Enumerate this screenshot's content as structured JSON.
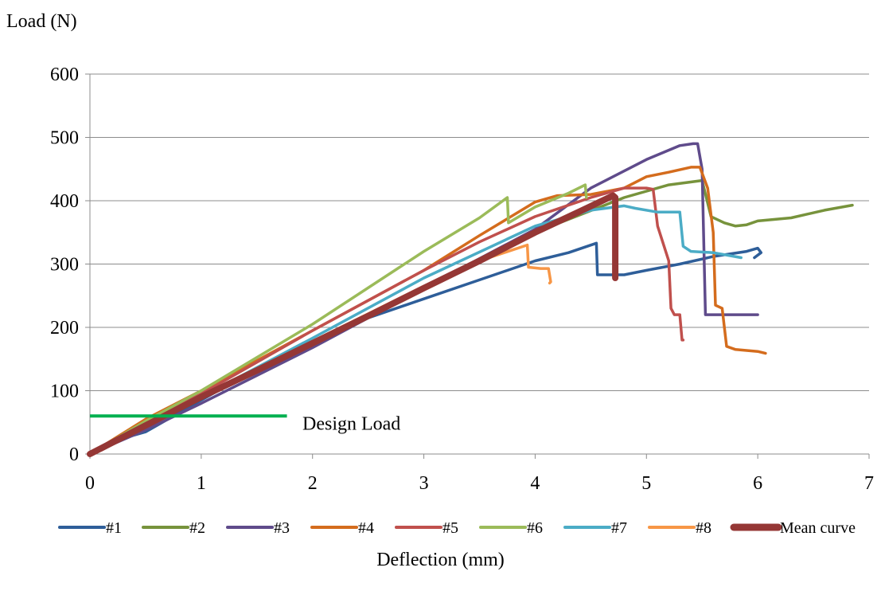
{
  "chart_data": {
    "type": "line",
    "title": "",
    "xlabel": "Deflection (mm)",
    "ylabel": "Load (N)",
    "xlim": [
      0,
      7
    ],
    "ylim": [
      0,
      600
    ],
    "x_ticks": [
      0,
      1,
      2,
      3,
      4,
      5,
      6,
      7
    ],
    "y_ticks": [
      0,
      100,
      200,
      300,
      400,
      500,
      600
    ],
    "grid": "horizontal",
    "legend_position": "bottom",
    "annotation": {
      "text": "Design Load",
      "x": [
        0,
        1.77
      ],
      "y": 60,
      "color": "#00b050"
    },
    "series": [
      {
        "name": "#1",
        "color": "#2e5e99",
        "width": 3.5,
        "x": [
          0,
          0.2,
          0.5,
          1.0,
          1.5,
          2.0,
          2.5,
          3.0,
          3.5,
          4.0,
          4.3,
          4.55,
          4.56,
          4.8,
          5.0,
          5.3,
          5.6,
          5.9,
          6.0,
          6.03,
          5.97
        ],
        "y": [
          0,
          20,
          35,
          85,
          135,
          175,
          215,
          245,
          275,
          305,
          318,
          333,
          283,
          283,
          290,
          300,
          312,
          320,
          325,
          318,
          310
        ]
      },
      {
        "name": "#2",
        "color": "#77933c",
        "width": 3.5,
        "x": [
          0,
          0.5,
          1.0,
          2.0,
          3.0,
          4.0,
          4.8,
          5.2,
          5.5,
          5.58,
          5.7,
          5.8,
          5.9,
          6.0,
          6.3,
          6.6,
          6.85
        ],
        "y": [
          0,
          45,
          88,
          175,
          262,
          350,
          405,
          425,
          432,
          375,
          365,
          360,
          362,
          368,
          373,
          385,
          393
        ]
      },
      {
        "name": "#3",
        "color": "#5f4b8b",
        "width": 3.5,
        "x": [
          0,
          0.5,
          1.0,
          2.0,
          3.0,
          4.0,
          4.5,
          5.0,
          5.3,
          5.42,
          5.46,
          5.5,
          5.53,
          5.6,
          5.8,
          6.0
        ],
        "y": [
          0,
          38,
          80,
          168,
          262,
          355,
          420,
          465,
          487,
          490,
          490,
          450,
          220,
          220,
          220,
          220
        ]
      },
      {
        "name": "#4",
        "color": "#d46c1d",
        "width": 3.5,
        "x": [
          0,
          0.5,
          1.0,
          2.0,
          3.0,
          3.5,
          4.0,
          4.2,
          4.5,
          4.8,
          5.0,
          5.2,
          5.4,
          5.48,
          5.55,
          5.6,
          5.62,
          5.68,
          5.72,
          5.8,
          6.0,
          6.07
        ],
        "y": [
          0,
          55,
          100,
          195,
          290,
          345,
          398,
          408,
          410,
          420,
          438,
          445,
          453,
          453,
          420,
          350,
          235,
          230,
          170,
          165,
          162,
          159
        ]
      },
      {
        "name": "#5",
        "color": "#c0504d",
        "width": 3.5,
        "x": [
          0,
          0.5,
          1.0,
          2.0,
          3.0,
          3.5,
          4.0,
          4.5,
          4.8,
          5.0,
          5.06,
          5.1,
          5.2,
          5.22,
          5.25,
          5.3,
          5.32,
          5.33
        ],
        "y": [
          0,
          50,
          95,
          195,
          290,
          335,
          375,
          405,
          420,
          420,
          418,
          360,
          305,
          230,
          220,
          220,
          180,
          180
        ]
      },
      {
        "name": "#6",
        "color": "#9bbb59",
        "width": 3.5,
        "x": [
          0,
          0.5,
          1.0,
          2.0,
          3.0,
          3.5,
          3.75,
          3.76,
          4.0,
          4.3,
          4.45,
          4.46
        ],
        "y": [
          0,
          52,
          100,
          205,
          320,
          373,
          405,
          365,
          390,
          412,
          425,
          405
        ]
      },
      {
        "name": "#7",
        "color": "#4bacc6",
        "width": 3.5,
        "x": [
          0,
          0.5,
          1.0,
          2.0,
          3.0,
          4.0,
          4.5,
          4.8,
          4.9,
          5.1,
          5.3,
          5.33,
          5.4,
          5.6,
          5.85
        ],
        "y": [
          0,
          45,
          90,
          183,
          278,
          360,
          385,
          392,
          388,
          382,
          382,
          328,
          320,
          318,
          310
        ]
      },
      {
        "name": "#8",
        "color": "#f79646",
        "width": 3.5,
        "x": [
          0,
          0.5,
          1.0,
          2.0,
          3.0,
          3.5,
          3.93,
          3.94,
          4.05,
          4.12,
          4.14,
          4.13
        ],
        "y": [
          0,
          42,
          88,
          178,
          265,
          305,
          330,
          295,
          293,
          293,
          272,
          270
        ]
      },
      {
        "name": "Mean curve",
        "color": "#953735",
        "width": 8,
        "x": [
          0,
          0.5,
          1.0,
          1.5,
          2.0,
          2.5,
          3.0,
          3.5,
          4.0,
          4.4,
          4.7,
          4.72,
          4.72
        ],
        "y": [
          0,
          45,
          90,
          132,
          175,
          218,
          262,
          305,
          350,
          383,
          408,
          405,
          278
        ]
      }
    ]
  }
}
